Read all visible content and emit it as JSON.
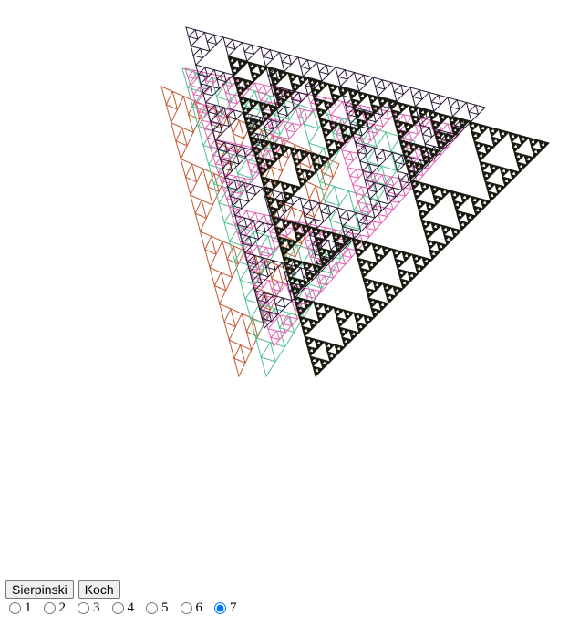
{
  "buttons": {
    "sierpinski_label": "Sierpinski",
    "koch_label": "Koch"
  },
  "depth_options": [
    "1",
    "2",
    "3",
    "4",
    "5",
    "6",
    "7"
  ],
  "selected_depth": "7",
  "fractal_colors": [
    "#c05a35",
    "#e060b0",
    "#2a1a3a",
    "#50c090",
    "#1a1a10"
  ]
}
